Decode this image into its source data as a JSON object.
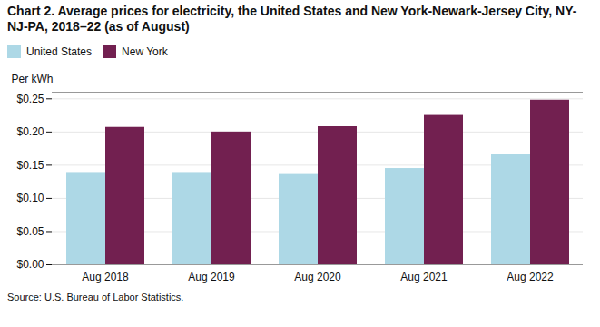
{
  "chart_data": {
    "type": "bar",
    "title": "Chart 2. Average prices for electricity, the United States and New York-Newark-Jersey City, NY-NJ-PA, 2018–22 (as of August)",
    "ylabel": "Per kWh",
    "caption": "Source: U.S. Bureau of Labor Statistics.",
    "categories": [
      "Aug 2018",
      "Aug 2019",
      "Aug 2020",
      "Aug 2021",
      "Aug 2022"
    ],
    "series": [
      {
        "name": "United States",
        "color": "#add8e6",
        "values": [
          0.139,
          0.139,
          0.136,
          0.145,
          0.166
        ]
      },
      {
        "name": "New York",
        "color": "#722050",
        "values": [
          0.207,
          0.2,
          0.208,
          0.225,
          0.248
        ]
      }
    ],
    "ylim": [
      0.0,
      0.26
    ],
    "yticks": [
      {
        "value": 0.0,
        "label": "$0.00"
      },
      {
        "value": 0.05,
        "label": "$0.05"
      },
      {
        "value": 0.1,
        "label": "$0.10"
      },
      {
        "value": 0.15,
        "label": "$0.15"
      },
      {
        "value": 0.2,
        "label": "$0.20"
      },
      {
        "value": 0.25,
        "label": "$0.25"
      }
    ],
    "grid": true,
    "legend": "top"
  }
}
